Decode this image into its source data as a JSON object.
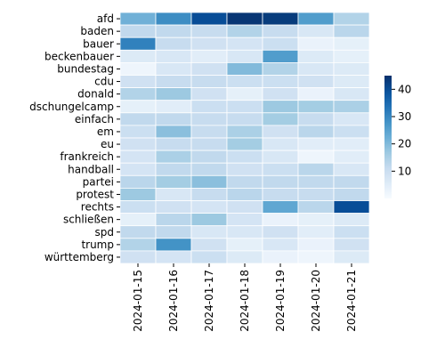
{
  "chart_data": {
    "type": "heatmap",
    "title": "",
    "xlabel": "",
    "ylabel": "",
    "x": [
      "2024-01-15",
      "2024-01-16",
      "2024-01-17",
      "2024-01-18",
      "2024-01-19",
      "2024-01-20",
      "2024-01-21"
    ],
    "y": [
      "afd",
      "baden",
      "bauer",
      "beckenbauer",
      "bundestag",
      "cdu",
      "donald",
      "dschungelcamp",
      "einfach",
      "em",
      "eu",
      "frankreich",
      "handball",
      "partei",
      "protest",
      "rechts",
      "schließen",
      "spd",
      "trump",
      "württemberg"
    ],
    "values": [
      [
        22,
        29,
        40,
        44,
        43,
        26,
        14
      ],
      [
        12,
        12,
        11,
        14,
        11,
        7,
        13
      ],
      [
        31,
        11,
        9,
        8,
        10,
        3,
        4
      ],
      [
        6,
        7,
        5,
        7,
        26,
        6,
        4
      ],
      [
        2,
        7,
        9,
        20,
        14,
        7,
        6
      ],
      [
        9,
        11,
        11,
        10,
        10,
        9,
        6
      ],
      [
        14,
        17,
        9,
        4,
        9,
        3,
        7
      ],
      [
        4,
        5,
        10,
        10,
        17,
        16,
        15
      ],
      [
        12,
        12,
        11,
        11,
        16,
        11,
        7
      ],
      [
        10,
        19,
        11,
        15,
        9,
        13,
        10
      ],
      [
        9,
        11,
        11,
        16,
        7,
        5,
        5
      ],
      [
        8,
        15,
        12,
        10,
        7,
        2,
        5
      ],
      [
        8,
        12,
        12,
        9,
        10,
        13,
        7
      ],
      [
        13,
        16,
        19,
        12,
        12,
        12,
        12
      ],
      [
        17,
        7,
        11,
        13,
        11,
        11,
        12
      ],
      [
        10,
        9,
        8,
        9,
        24,
        13,
        40
      ],
      [
        4,
        13,
        17,
        8,
        3,
        4,
        6
      ],
      [
        12,
        12,
        7,
        7,
        9,
        5,
        10
      ],
      [
        14,
        28,
        9,
        4,
        7,
        3,
        9
      ],
      [
        9,
        8,
        10,
        6,
        3,
        2,
        6
      ]
    ],
    "colorbar": {
      "min": 0,
      "max": 45,
      "ticks": [
        10,
        20,
        30,
        40
      ],
      "colormap": "Blues"
    },
    "grid": false,
    "cell_gap_color": "#ffffff"
  }
}
